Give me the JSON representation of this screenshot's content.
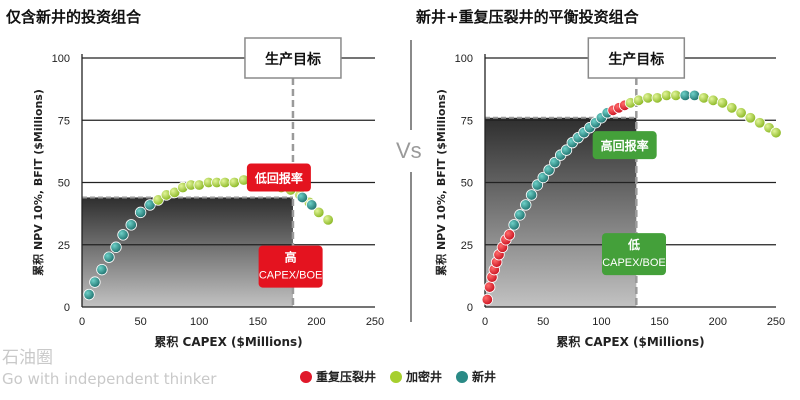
{
  "page": {
    "title_left": "仅含新井的投资组合",
    "title_right": "新井+重复压裂井的平衡投资组合",
    "vs_label": "Vs",
    "watermark_brand": "石油圈",
    "watermark_tagline": "Go with independent thinker"
  },
  "colors": {
    "refrac": "#e0182a",
    "infill": "#a6cf2e",
    "new": "#2a8a86",
    "callout_red": "#e4131f",
    "callout_green": "#44a03a",
    "target_line": "#9a9a9a"
  },
  "legend": [
    {
      "key": "refrac",
      "label": "重复压裂井"
    },
    {
      "key": "infill",
      "label": "加密井"
    },
    {
      "key": "new",
      "label": "新井"
    }
  ],
  "chart_data": [
    {
      "type": "scatter",
      "id": "new-wells-only",
      "title": "仅含新井的投资组合",
      "xlabel": "累积 CAPEX ($Millions)",
      "ylabel": "累积 NPV 10%, BFIT ($Millions)",
      "xlim": [
        0,
        250
      ],
      "ylim": [
        0,
        100
      ],
      "xticks": [
        0,
        50,
        100,
        150,
        200,
        250
      ],
      "yticks": [
        0,
        25,
        50,
        75,
        100
      ],
      "grid": "horizontal",
      "target": {
        "label": "生产目标",
        "x": 180
      },
      "callouts": [
        {
          "id": "return",
          "label": "低回报率",
          "color": "red",
          "anchor": [
            168,
            52
          ]
        },
        {
          "id": "cost",
          "label": "高",
          "sublabel": "CAPEX/BOE",
          "color": "red",
          "anchor": [
            178,
            7
          ]
        }
      ],
      "shaded_region": {
        "x": [
          0,
          180
        ],
        "y": [
          0,
          44
        ]
      },
      "series": [
        {
          "type_key": "new",
          "x": [
            6,
            11,
            17,
            23,
            29,
            35,
            42,
            50,
            58
          ],
          "y": [
            5,
            10,
            15,
            20,
            24,
            29,
            33,
            38,
            41
          ]
        },
        {
          "type_key": "infill",
          "x": [
            65,
            72,
            79,
            86,
            93,
            100,
            108,
            115,
            122,
            130,
            138,
            146,
            154,
            162,
            170,
            178,
            186,
            194,
            202,
            210
          ],
          "y": [
            43,
            45,
            46,
            48,
            49,
            49,
            50,
            50,
            50,
            50,
            51,
            50,
            49,
            49,
            48,
            47,
            45,
            42,
            38,
            35
          ]
        },
        {
          "type_key": "new",
          "x": [
            188,
            196
          ],
          "y": [
            44,
            41
          ]
        }
      ]
    },
    {
      "type": "scatter",
      "id": "balanced-portfolio",
      "title": "新井+重复压裂井的平衡投资组合",
      "xlabel": "累积 CAPEX ($Millions)",
      "ylabel": "累积 NPV 10%, BFIT ($Millions)",
      "xlim": [
        0,
        250
      ],
      "ylim": [
        0,
        100
      ],
      "xticks": [
        0,
        50,
        100,
        150,
        200,
        250
      ],
      "yticks": [
        0,
        25,
        50,
        75,
        100
      ],
      "grid": "horizontal",
      "target": {
        "label": "生产目标",
        "x": 130
      },
      "callouts": [
        {
          "id": "return",
          "label": "高回报率",
          "color": "green",
          "anchor": [
            120,
            65
          ]
        },
        {
          "id": "cost",
          "label": "低",
          "sublabel": "CAPEX/BOE",
          "color": "green",
          "anchor": [
            128,
            12
          ]
        }
      ],
      "shaded_region": {
        "x": [
          0,
          130
        ],
        "y": [
          0,
          76
        ]
      },
      "series": [
        {
          "type_key": "refrac",
          "x": [
            2,
            4,
            6,
            8,
            10,
            12,
            15,
            18,
            21
          ],
          "y": [
            3,
            8,
            12,
            15,
            18,
            21,
            24,
            27,
            29
          ]
        },
        {
          "type_key": "new",
          "x": [
            25,
            30,
            35,
            40,
            45,
            50,
            55,
            60,
            65,
            70,
            75,
            80,
            85,
            90,
            95,
            100,
            105
          ],
          "y": [
            33,
            37,
            41,
            45,
            49,
            52,
            55,
            58,
            61,
            63,
            66,
            68,
            70,
            72,
            74,
            76,
            78
          ]
        },
        {
          "type_key": "refrac",
          "x": [
            110,
            115,
            120
          ],
          "y": [
            79,
            80,
            81
          ]
        },
        {
          "type_key": "infill",
          "x": [
            125,
            132,
            140,
            148,
            156,
            164
          ],
          "y": [
            82,
            83,
            84,
            84,
            85,
            85
          ]
        },
        {
          "type_key": "new",
          "x": [
            172,
            180
          ],
          "y": [
            85,
            85
          ]
        },
        {
          "type_key": "infill",
          "x": [
            188,
            196,
            204,
            212,
            220,
            228,
            236,
            244,
            250
          ],
          "y": [
            84,
            83,
            82,
            80,
            78,
            76,
            74,
            72,
            70
          ]
        }
      ]
    }
  ]
}
